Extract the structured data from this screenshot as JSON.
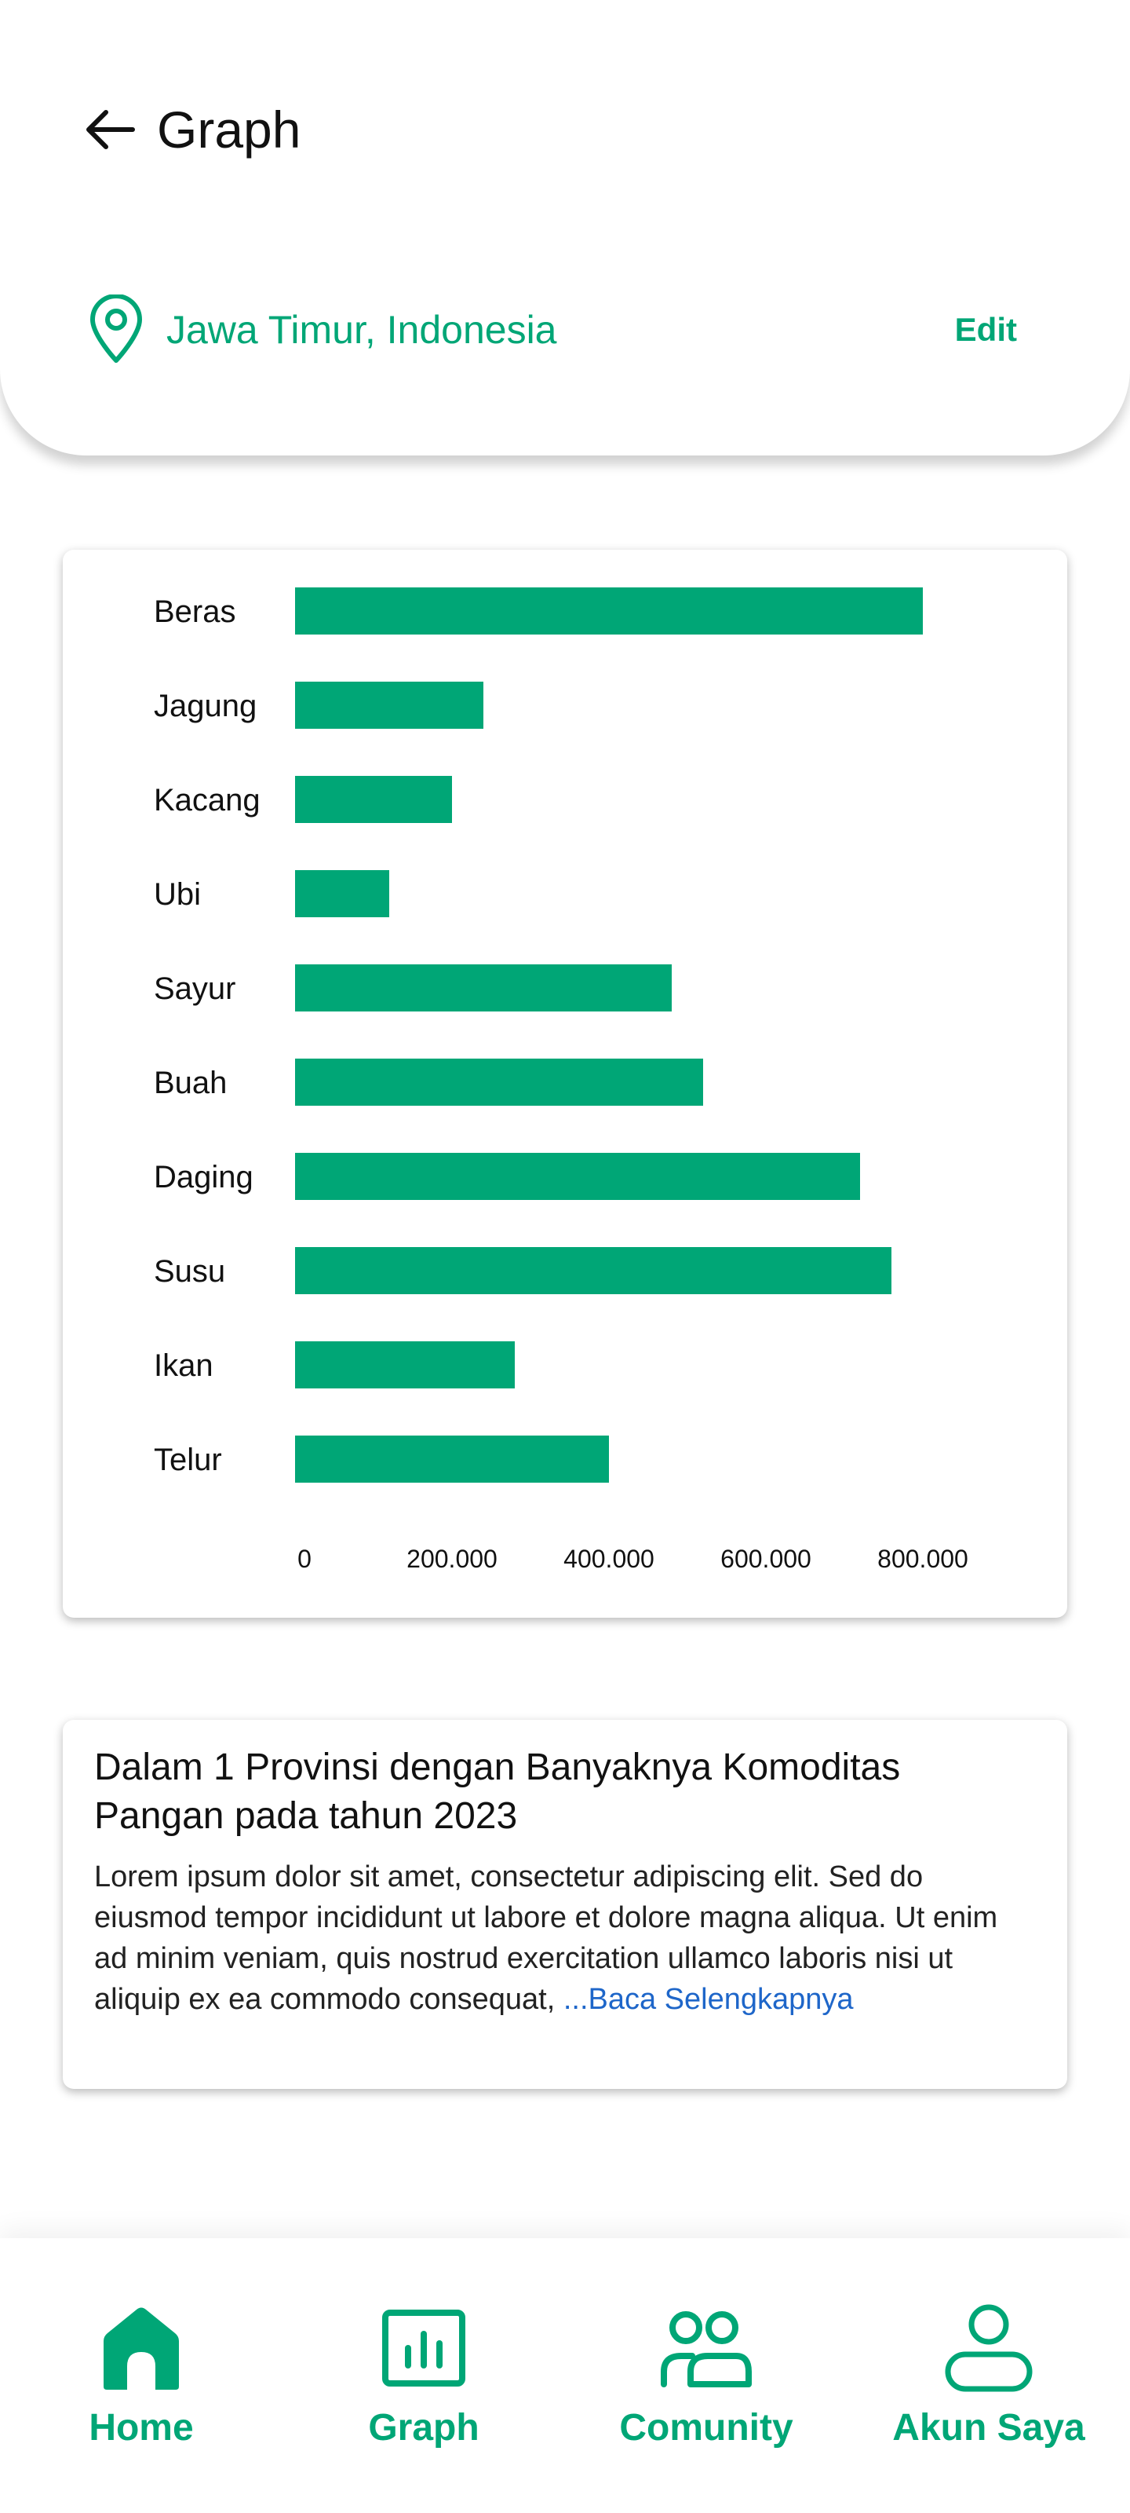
{
  "header": {
    "title": "Graph",
    "back_icon": "arrow-left-icon"
  },
  "location": {
    "icon": "map-pin-icon",
    "text": "Jawa Timur, Indonesia",
    "edit_label": "Edit"
  },
  "colors": {
    "accent": "#00a676",
    "link": "#1e66c9"
  },
  "chart_data": {
    "type": "bar",
    "orientation": "horizontal",
    "categories": [
      "Beras",
      "Jagung",
      "Kacang",
      "Ubi",
      "Sayur",
      "Buah",
      "Daging",
      "Susu",
      "Ikan",
      "Telur"
    ],
    "values": [
      800000,
      240000,
      200000,
      120000,
      480000,
      520000,
      720000,
      760000,
      280000,
      400000
    ],
    "xticks": [
      0,
      200000,
      400000,
      600000,
      800000
    ],
    "xtick_labels": [
      "0",
      "200.000",
      "400.000",
      "600.000",
      "800.000"
    ],
    "xlim": [
      0,
      840000
    ],
    "grid": false,
    "color": "#00a676"
  },
  "description": {
    "title": "Dalam 1 Provinsi dengan Banyaknya Komoditas Pangan pada tahun 2023",
    "body": "Lorem ipsum dolor sit amet, consectetur adipiscing elit. Sed do eiusmod tempor incididunt ut labore et dolore magna aliqua. Ut enim ad minim veniam, quis nostrud exercitation ullamco laboris nisi ut aliquip ex ea commodo consequat,",
    "read_more": " ...Baca Selengkapnya"
  },
  "nav": {
    "items": [
      {
        "label": "Home",
        "icon": "home-icon"
      },
      {
        "label": "Graph",
        "icon": "graph-icon"
      },
      {
        "label": "Comunity",
        "icon": "community-icon"
      },
      {
        "label": "Akun Saya",
        "icon": "user-icon"
      }
    ]
  }
}
